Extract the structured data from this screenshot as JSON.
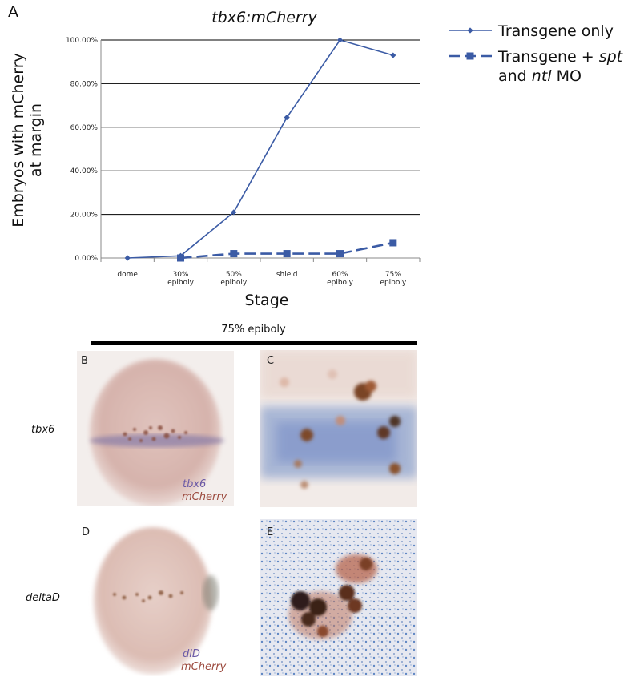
{
  "panel_labels": {
    "a": "A",
    "b": "B",
    "c": "C",
    "d": "D",
    "e": "E"
  },
  "chart_data": {
    "type": "line",
    "title": "tbx6:mCherry",
    "xlabel": "Stage",
    "ylabel_lines": [
      "Embryos with mCherry",
      "at margin"
    ],
    "categories": [
      [
        "dome"
      ],
      [
        "30%",
        "epiboly"
      ],
      [
        "50%",
        "epiboly"
      ],
      [
        "shield"
      ],
      [
        "60%",
        "epiboly"
      ],
      [
        "75%",
        "epiboly"
      ]
    ],
    "y_ticks": [
      "0.00%",
      "20.00%",
      "40.00%",
      "60.00%",
      "80.00%",
      "100.00%"
    ],
    "ylim": [
      0,
      100
    ],
    "grid": true,
    "legend_position": "right",
    "series": [
      {
        "legend_parts": [
          {
            "text": "Transgene only",
            "italic": false
          }
        ],
        "legend_parts_line2": [],
        "values": [
          0,
          1,
          21,
          64.5,
          100,
          93
        ],
        "marker": "diamond",
        "dash": "solid",
        "color": "#3b5ba5"
      },
      {
        "legend_parts": [
          {
            "text": "Transgene + ",
            "italic": false
          },
          {
            "text": "spt",
            "italic": true
          }
        ],
        "legend_parts_line2": [
          {
            "text": "and ",
            "italic": false
          },
          {
            "text": "ntl",
            "italic": true
          },
          {
            "text": " MO",
            "italic": false
          }
        ],
        "values": [
          null,
          0,
          2,
          2,
          2,
          7
        ],
        "marker": "square",
        "dash": "dashed",
        "color": "#3b5ba5"
      }
    ]
  },
  "stage_banner": "75% epiboly",
  "rows": {
    "row1_gene": "tbx6",
    "row2_gene": "deltaD"
  },
  "stain_labels": {
    "b_probe": "tbx6",
    "b_reporter": "mCherry",
    "d_probe": "dlD",
    "d_reporter": "mCherry"
  }
}
